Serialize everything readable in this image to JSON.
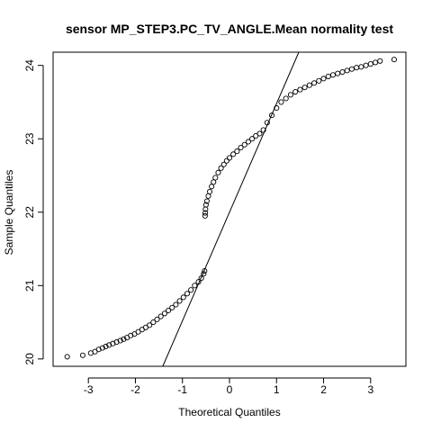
{
  "chart_data": {
    "type": "scatter",
    "title": "sensor MP_STEP3.PC_TV_ANGLE.Mean normality test",
    "xlabel": "Theoretical Quantiles",
    "ylabel": "Sample Quantiles",
    "xlim": [
      -3.75,
      3.75
    ],
    "ylim": [
      19.9,
      24.18
    ],
    "xticks": [
      -3,
      -2,
      -1,
      0,
      1,
      2,
      3
    ],
    "yticks": [
      20,
      21,
      22,
      23,
      24
    ],
    "reference_line": {
      "slope": 1.48,
      "intercept": 22.0
    },
    "series": [
      {
        "type": "scatter",
        "description": "Normal Q-Q points of the sample",
        "x": [
          -3.45,
          -3.12,
          -2.95,
          -2.86,
          -2.78,
          -2.7,
          -2.63,
          -2.56,
          -2.48,
          -2.4,
          -2.32,
          -2.25,
          -2.18,
          -2.1,
          -2.02,
          -1.94,
          -1.86,
          -1.78,
          -1.7,
          -1.62,
          -1.54,
          -1.46,
          -1.38,
          -1.3,
          -1.22,
          -1.14,
          -1.06,
          -0.98,
          -0.9,
          -0.82,
          -0.74,
          -0.66,
          -0.6,
          -0.55,
          -0.53,
          -0.52,
          -0.515,
          -0.51,
          -0.5,
          -0.48,
          -0.45,
          -0.42,
          -0.38,
          -0.34,
          -0.3,
          -0.24,
          -0.18,
          -0.12,
          -0.06,
          0.0,
          0.08,
          0.16,
          0.24,
          0.32,
          0.4,
          0.48,
          0.56,
          0.64,
          0.72,
          0.8,
          0.9,
          1.0,
          1.1,
          1.2,
          1.3,
          1.4,
          1.5,
          1.6,
          1.7,
          1.8,
          1.9,
          2.0,
          2.1,
          2.2,
          2.3,
          2.4,
          2.5,
          2.6,
          2.7,
          2.8,
          2.9,
          3.0,
          3.1,
          3.2,
          3.5
        ],
        "y": [
          20.03,
          20.05,
          20.08,
          20.1,
          20.13,
          20.15,
          20.17,
          20.19,
          20.21,
          20.23,
          20.25,
          20.27,
          20.29,
          20.32,
          20.34,
          20.37,
          20.4,
          20.43,
          20.46,
          20.5,
          20.54,
          20.58,
          20.62,
          20.66,
          20.7,
          20.74,
          20.79,
          20.84,
          20.89,
          20.94,
          21.0,
          21.05,
          21.1,
          21.16,
          21.2,
          21.95,
          21.99,
          22.04,
          22.1,
          22.15,
          22.22,
          22.28,
          22.35,
          22.41,
          22.47,
          22.54,
          22.6,
          22.65,
          22.7,
          22.74,
          22.79,
          22.83,
          22.88,
          22.92,
          22.96,
          23.0,
          23.04,
          23.07,
          23.12,
          23.22,
          23.32,
          23.42,
          23.5,
          23.55,
          23.6,
          23.64,
          23.67,
          23.7,
          23.73,
          23.76,
          23.79,
          23.82,
          23.85,
          23.87,
          23.89,
          23.91,
          23.93,
          23.95,
          23.97,
          23.98,
          24.0,
          24.02,
          24.04,
          24.06,
          24.08
        ]
      }
    ]
  }
}
